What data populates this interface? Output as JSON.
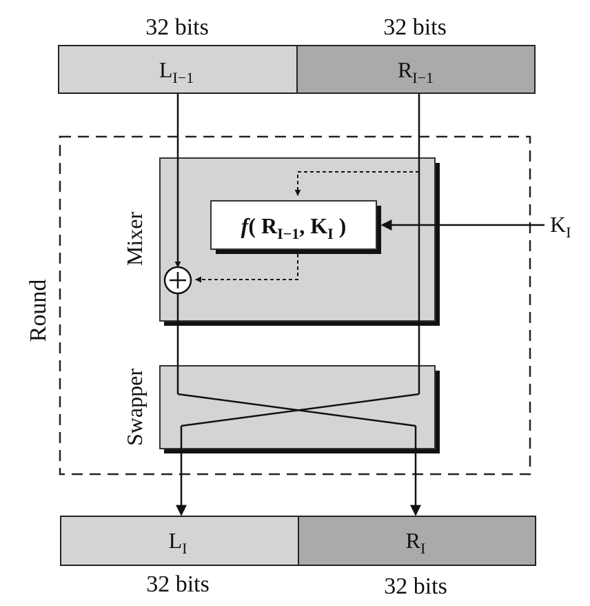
{
  "input": {
    "left_bits": "32 bits",
    "right_bits": "32 bits",
    "left_name": "L",
    "left_sub": "I−1",
    "right_name": "R",
    "right_sub": "I−1"
  },
  "output": {
    "left_bits": "32 bits",
    "right_bits": "32 bits",
    "left_name": "L",
    "left_sub": "I",
    "right_name": "R",
    "right_sub": "I"
  },
  "round_label": "Round",
  "mixer_label": "Mixer",
  "swapper_label": "Swapper",
  "function": {
    "f": "f",
    "open": "( ",
    "arg1_name": "R",
    "arg1_sub": "I−1",
    "comma": ", ",
    "arg2_name": "K",
    "arg2_sub": "I",
    "close": " )"
  },
  "key": {
    "name": "K",
    "sub": "I"
  },
  "colors": {
    "left_block": "#d4d4d4",
    "right_block": "#aaaaaa",
    "mixer_box": "#d4d4d4",
    "shadow": "#111111"
  }
}
